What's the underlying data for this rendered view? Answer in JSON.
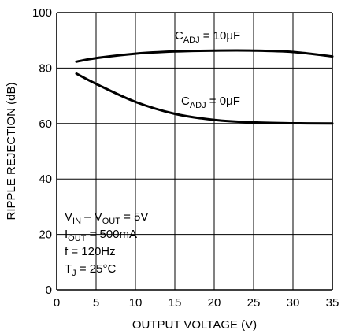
{
  "chart_data": {
    "type": "line",
    "title": "",
    "xlabel": "OUTPUT VOLTAGE (V)",
    "ylabel": "RIPPLE REJECTION (dB)",
    "xlim": [
      0,
      35
    ],
    "ylim": [
      0,
      100
    ],
    "x_ticks": [
      "0",
      "5",
      "10",
      "15",
      "20",
      "25",
      "30",
      "35"
    ],
    "y_ticks": [
      "0",
      "20",
      "40",
      "60",
      "80",
      "100"
    ],
    "grid": true,
    "colors": {
      "line": "#000000",
      "grid": "#000000"
    },
    "series": [
      {
        "label_main": "C",
        "label_sub": "ADJ",
        "label_rest": " = 10μF",
        "x": [
          2.5,
          5,
          10,
          15,
          20,
          25,
          30,
          35
        ],
        "y": [
          82.3,
          83.6,
          85.2,
          86.0,
          86.3,
          86.3,
          85.8,
          84.2
        ]
      },
      {
        "label_main": "C",
        "label_sub": "ADJ",
        "label_rest": " = 0μF",
        "x": [
          2.5,
          5,
          10,
          15,
          20,
          25,
          30,
          35
        ],
        "y": [
          78.0,
          74.3,
          67.8,
          63.5,
          61.3,
          60.4,
          60.1,
          60.0
        ]
      }
    ],
    "conditions": [
      {
        "parts": [
          {
            "t": "V"
          },
          {
            "t": "IN",
            "sub": true
          },
          {
            "t": " – V"
          },
          {
            "t": "OUT",
            "sub": true
          },
          {
            "t": " = 5V"
          }
        ]
      },
      {
        "parts": [
          {
            "t": "I"
          },
          {
            "t": "OUT",
            "sub": true
          },
          {
            "t": " = 500mA"
          }
        ]
      },
      {
        "parts": [
          {
            "t": "f = 120Hz"
          }
        ]
      },
      {
        "parts": [
          {
            "t": "T"
          },
          {
            "t": "J",
            "sub": true
          },
          {
            "t": " = 25°C"
          }
        ]
      }
    ]
  }
}
